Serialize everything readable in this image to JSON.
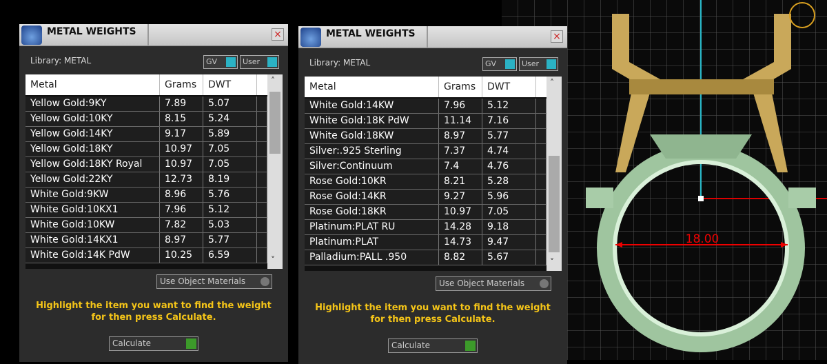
{
  "panels": [
    {
      "title": "METAL WEIGHTS",
      "library": "Library: METAL",
      "toggles": [
        "GV",
        "User"
      ],
      "columns": [
        "Metal",
        "Grams",
        "DWT"
      ],
      "rows": [
        [
          "Yellow Gold:9KY",
          "7.89",
          "5.07"
        ],
        [
          "Yellow Gold:10KY",
          "8.15",
          "5.24"
        ],
        [
          "Yellow Gold:14KY",
          "9.17",
          "5.89"
        ],
        [
          "Yellow Gold:18KY",
          "10.97",
          "7.05"
        ],
        [
          "Yellow Gold:18KY Royal",
          "10.97",
          "7.05"
        ],
        [
          "Yellow Gold:22KY",
          "12.73",
          "8.19"
        ],
        [
          "White Gold:9KW",
          "8.96",
          "5.76"
        ],
        [
          "White Gold:10KX1",
          "7.96",
          "5.12"
        ],
        [
          "White Gold:10KW",
          "7.82",
          "5.03"
        ],
        [
          "White Gold:14KX1",
          "8.97",
          "5.77"
        ],
        [
          "White Gold:14K PdW",
          "10.25",
          "6.59"
        ]
      ],
      "material_option": "Use Object Materials",
      "hint": "Highlight the item you want to find the weight for then press Calculate.",
      "button": "Calculate"
    },
    {
      "title": "METAL WEIGHTS",
      "library": "Library: METAL",
      "toggles": [
        "GV",
        "User"
      ],
      "columns": [
        "Metal",
        "Grams",
        "DWT"
      ],
      "rows": [
        [
          "White Gold:14KW",
          "7.96",
          "5.12"
        ],
        [
          "White Gold:18K PdW",
          "11.14",
          "7.16"
        ],
        [
          "White Gold:18KW",
          "8.97",
          "5.77"
        ],
        [
          "Silver:.925 Sterling",
          "7.37",
          "4.74"
        ],
        [
          "Silver:Continuum",
          "7.4",
          "4.76"
        ],
        [
          "Rose Gold:10KR",
          "8.21",
          "5.28"
        ],
        [
          "Rose Gold:14KR",
          "9.27",
          "5.96"
        ],
        [
          "Rose Gold:18KR",
          "10.97",
          "7.05"
        ],
        [
          "Platinum:PLAT RU",
          "14.28",
          "9.18"
        ],
        [
          "Platinum:PLAT",
          "14.73",
          "9.47"
        ],
        [
          "Palladium:PALL .950",
          "8.82",
          "5.67"
        ]
      ],
      "material_option": "Use Object Materials",
      "hint": "Highlight the item you want to find the weight for then press Calculate.",
      "button": "Calculate"
    }
  ],
  "viewport": {
    "dimension": "18.00"
  }
}
